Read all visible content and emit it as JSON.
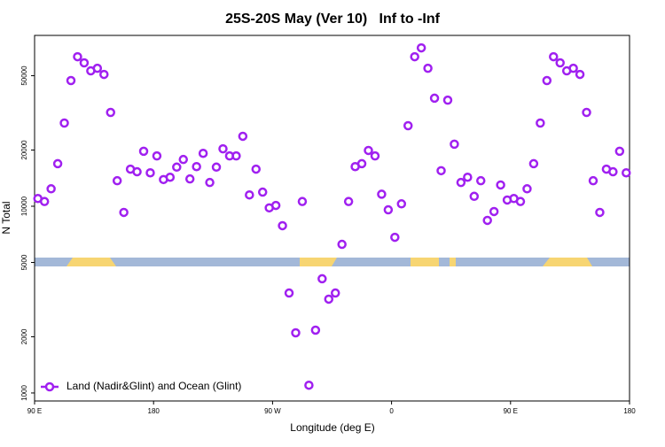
{
  "chart_data": {
    "type": "scatter",
    "title": "25S-20S May (Ver 10)   Inf to -Inf",
    "x_label": "Longitude (deg E)",
    "y_label": "N Total",
    "log_y": true,
    "xlim": [
      90,
      540
    ],
    "ylim": [
      906,
      82200
    ],
    "xticks": [
      {
        "value": 90,
        "label": "90 E"
      },
      {
        "value": 180,
        "label": "180"
      },
      {
        "value": 270,
        "label": "90 W"
      },
      {
        "value": 360,
        "label": "0"
      },
      {
        "value": 450,
        "label": "90 E"
      },
      {
        "value": 540,
        "label": "180"
      }
    ],
    "yticks": [
      1000,
      2000,
      5000,
      10000,
      20000,
      50000
    ],
    "legend": "bottom-left",
    "series": [
      {
        "name": "Land (Nadir&Glint) and Ocean (Glint)",
        "color": "#a020f0",
        "x": [
          92.5,
          97.5,
          102.5,
          107.5,
          112.5,
          117.5,
          122.5,
          127.5,
          132.5,
          137.5,
          142.5,
          147.5,
          152.5,
          157.5,
          162.5,
          167.5,
          172.5,
          177.5,
          182.5,
          187.5,
          192.5,
          197.5,
          202.5,
          207.5,
          212.5,
          217.5,
          222.5,
          227.5,
          232.5,
          237.5,
          242.5,
          247.5,
          252.5,
          257.5,
          262.5,
          267.5,
          272.5,
          277.5,
          282.5,
          287.5,
          292.5,
          297.5,
          302.5,
          307.5,
          312.5,
          317.5,
          322.5,
          327.5,
          332.5,
          337.5,
          342.5,
          347.5,
          352.5,
          357.5,
          362.5,
          367.5,
          372.5,
          377.5,
          382.5,
          387.5,
          392.5,
          397.5,
          402.5,
          407.5,
          412.5,
          417.5,
          422.5,
          427.5,
          432.5,
          437.5,
          442.5,
          447.5,
          452.5,
          457.5,
          462.5,
          467.5,
          472.5,
          477.5,
          482.5,
          487.5,
          492.5,
          497.5,
          502.5,
          507.5,
          512.5,
          517.5,
          522.5,
          527.5,
          532.5,
          537.5
        ],
        "values": [
          11000,
          10600,
          12400,
          16900,
          27900,
          47100,
          63200,
          58600,
          53100,
          54800,
          50800,
          31800,
          13700,
          9270,
          15800,
          15300,
          19700,
          15100,
          18600,
          13900,
          14300,
          16200,
          17800,
          14000,
          16300,
          19200,
          13400,
          16200,
          20300,
          18600,
          18600,
          23700,
          11500,
          15800,
          11900,
          9800,
          10100,
          7870,
          3430,
          2100,
          10600,
          1100,
          2170,
          4090,
          3180,
          3430,
          6250,
          10600,
          16300,
          16900,
          19900,
          18600,
          11600,
          9570,
          6820,
          10300,
          27000,
          63200,
          70500,
          54800,
          37900,
          15500,
          37000,
          21500,
          13400,
          14300,
          11300,
          13700,
          8400,
          9370,
          13000,
          10800,
          11000,
          10600,
          12400,
          16900,
          27900,
          47100,
          63200,
          58600,
          53100,
          54800,
          50800,
          31800,
          13700,
          9270,
          15800,
          15300,
          19700,
          15100
        ]
      }
    ]
  }
}
